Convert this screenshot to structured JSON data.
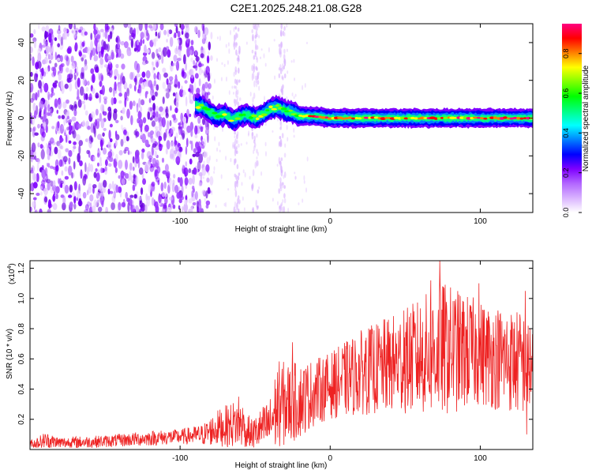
{
  "title": "C2E1.2025.248.21.08.G28",
  "chart_data": [
    {
      "type": "heatmap",
      "xlabel": "Height of straight line (km)",
      "ylabel": "Frequency (Hz)",
      "xlim": [
        -200,
        135
      ],
      "ylim": [
        -50,
        50
      ],
      "xticks": [
        -100,
        0,
        100
      ],
      "yticks": [
        -40,
        -20,
        0,
        20,
        40
      ],
      "noise_region_km": [
        -200,
        -85
      ],
      "noise_streaks_km": [
        -62,
        -50,
        -32
      ],
      "signal_track": [
        {
          "x": -90,
          "f": 7
        },
        {
          "x": -85,
          "f": 6
        },
        {
          "x": -80,
          "f": 3
        },
        {
          "x": -75,
          "f": 1
        },
        {
          "x": -70,
          "f": 2
        },
        {
          "x": -65,
          "f": -1
        },
        {
          "x": -60,
          "f": 1
        },
        {
          "x": -55,
          "f": 2
        },
        {
          "x": -50,
          "f": 0
        },
        {
          "x": -45,
          "f": 2
        },
        {
          "x": -40,
          "f": 5
        },
        {
          "x": -35,
          "f": 6
        },
        {
          "x": -30,
          "f": 4
        },
        {
          "x": -25,
          "f": 3
        },
        {
          "x": -20,
          "f": 1
        },
        {
          "x": -10,
          "f": 1
        },
        {
          "x": 0,
          "f": 0
        },
        {
          "x": 20,
          "f": 0
        },
        {
          "x": 50,
          "f": 0
        },
        {
          "x": 80,
          "f": 0
        },
        {
          "x": 110,
          "f": 0
        },
        {
          "x": 135,
          "f": 0
        }
      ],
      "colorbar": {
        "label": "Normalized spectral amplitude",
        "range": [
          0,
          0.95
        ],
        "ticks": [
          "0.0",
          "0.2",
          "0.4",
          "0.6",
          "0.8"
        ],
        "colors": [
          "#ffffff",
          "#d9b3ff",
          "#b266ff",
          "#7f00ff",
          "#0000ff",
          "#0080ff",
          "#00ffff",
          "#00ff80",
          "#00ff00",
          "#80ff00",
          "#ffff00",
          "#ff8000",
          "#ff0000",
          "#ff0080"
        ]
      }
    },
    {
      "type": "line",
      "xlabel": "Height of straight line (km)",
      "ylabel": "SNR (10 * v/v)",
      "scale_label": "(x10",
      "scale_exp": "4",
      "scale_close": ")",
      "xlim": [
        -200,
        135
      ],
      "ylim": [
        0,
        1.25
      ],
      "xticks": [
        -100,
        0,
        100
      ],
      "yticks": [
        "0.2",
        "0.4",
        "0.6",
        "0.8",
        "1.0",
        "1.2"
      ],
      "color": "#ee2222",
      "envelope": [
        {
          "x": -200,
          "base": 0.03,
          "amp": 0.03
        },
        {
          "x": -190,
          "base": 0.05,
          "amp": 0.06
        },
        {
          "x": -180,
          "base": 0.04,
          "amp": 0.04
        },
        {
          "x": -150,
          "base": 0.05,
          "amp": 0.04
        },
        {
          "x": -120,
          "base": 0.07,
          "amp": 0.05
        },
        {
          "x": -100,
          "base": 0.08,
          "amp": 0.05
        },
        {
          "x": -85,
          "base": 0.09,
          "amp": 0.07
        },
        {
          "x": -75,
          "base": 0.13,
          "amp": 0.12
        },
        {
          "x": -60,
          "base": 0.16,
          "amp": 0.17
        },
        {
          "x": -52,
          "base": 0.09,
          "amp": 0.1
        },
        {
          "x": -40,
          "base": 0.15,
          "amp": 0.18
        },
        {
          "x": -35,
          "base": 0.26,
          "amp": 0.3
        },
        {
          "x": -20,
          "base": 0.3,
          "amp": 0.25
        },
        {
          "x": -10,
          "base": 0.36,
          "amp": 0.22
        },
        {
          "x": 0,
          "base": 0.4,
          "amp": 0.22
        },
        {
          "x": 20,
          "base": 0.48,
          "amp": 0.28
        },
        {
          "x": 50,
          "base": 0.55,
          "amp": 0.35
        },
        {
          "x": 75,
          "base": 0.62,
          "amp": 0.45
        },
        {
          "x": 100,
          "base": 0.6,
          "amp": 0.35
        },
        {
          "x": 135,
          "base": 0.52,
          "amp": 0.35
        }
      ],
      "peaks": [
        {
          "x": 73,
          "y": 1.25
        },
        {
          "x": 67,
          "y": 1.12
        },
        {
          "x": 99,
          "y": 1.1
        },
        {
          "x": 130,
          "y": 1.05
        },
        {
          "x": 49,
          "y": 0.92
        },
        {
          "x": 24,
          "y": 0.74
        },
        {
          "x": -25,
          "y": 0.71
        },
        {
          "x": -61,
          "y": 0.35
        },
        {
          "x": 131,
          "y": 0.1
        }
      ]
    }
  ]
}
